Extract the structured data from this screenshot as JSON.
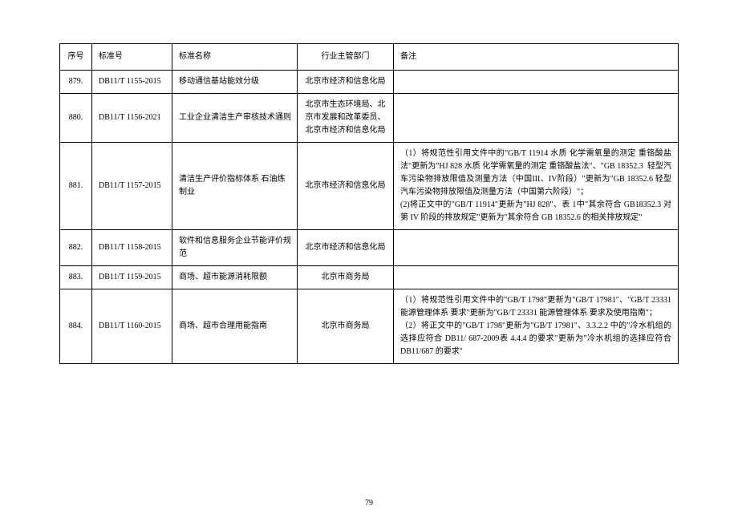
{
  "headers": {
    "seq": "序号",
    "std": "标准号",
    "name": "标准名称",
    "dept": "行业主管部门",
    "notes": "备注"
  },
  "rows": [
    {
      "seq": "879.",
      "std": "DB11/T 1155-2015",
      "name": "移动通信基站能效分级",
      "dept": "北京市经济和信息化局",
      "notes": ""
    },
    {
      "seq": "880.",
      "std": "DB11/T 1156-2021",
      "name": "工业企业清洁生产审核技术通则",
      "dept": "北京市生态环境局、北京市发展和改革委员、北京市经济和信息化局",
      "notes": ""
    },
    {
      "seq": "881.",
      "std": "DB11/T 1157-2015",
      "name": "清洁生产评价指标体系 石油炼制业",
      "dept": "北京市经济和信息化局",
      "notes": "（1）将规范性引用文件中的\"GB/T 11914 水质 化学需氧量的测定 重铬酸盐法\"更新为\"HJ 828 水质 化学需氧量的测定 重铬酸盐法\"、\"GB 18352.3  轻型汽车污染物排放限值及测量方法（中国III、IV阶段）\"更新为\"GB 18352.6 轻型汽车污染物排放限值及测量方法（中国第六阶段）\"；\n(2)将正文中的\"GB/T 11914\"更新为\"HJ 828\"、表 1中\"其余符合 GB18352.3 对第 IV 阶段的排放规定\"更新为\"其余符合 GB 18352.6 的相关排放规定\""
    },
    {
      "seq": "882.",
      "std": "DB11/T 1158-2015",
      "name": "软件和信息服务企业节能评价规范",
      "dept": "北京市经济和信息化局",
      "notes": ""
    },
    {
      "seq": "883.",
      "std": "DB11/T 1159-2015",
      "name": "商场、超市能源消耗限额",
      "dept": "北京市商务局",
      "notes": ""
    },
    {
      "seq": "884.",
      "std": "DB11/T 1160-2015",
      "name": "商场、超市合理用能指南",
      "dept": "北京市商务局",
      "notes": "（1）将规范性引用文件中的\"GB/T 1798\"更新为\"GB/T 17981\"、\"GB/T 23331 能源管理体系 要求\"更新为\"GB/T 23331 能源管理体系 要求及使用指南\"；\n（2）将正文中的\"GB/T 1798\"更新为\"GB/T 17981\"、3.3.2.2 中的\"冷水机组的选择应符合 DB11/ 687-2009表 4.4.4 的要求\"更新为\"冷水机组的选择应符合 DB11/687 的要求\""
    }
  ],
  "page_number": "79"
}
